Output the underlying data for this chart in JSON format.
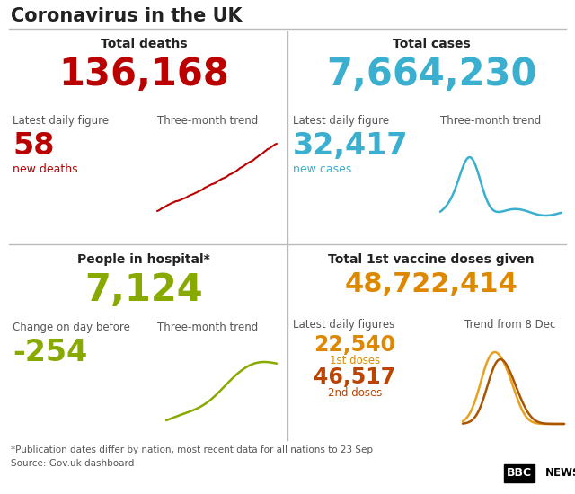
{
  "title": "Coronavirus in the UK",
  "bg_color": "#ffffff",
  "title_color": "#222222",
  "divider_color": "#bbbbbb",
  "top_left_header": "Total deaths",
  "total_deaths": "136,168",
  "deaths_color": "#bb0000",
  "latest_daily_label_tl": "Latest daily figure",
  "three_month_label_tl": "Three-month trend",
  "daily_deaths": "58",
  "new_deaths_label": "new deaths",
  "top_right_header": "Total cases",
  "total_cases": "7,664,230",
  "cases_color": "#3aafcf",
  "latest_daily_label_tr": "Latest daily figure",
  "three_month_label_tr": "Three-month trend",
  "daily_cases": "32,417",
  "new_cases_label": "new cases",
  "bottom_left_header": "People in hospital*",
  "hospital_count": "7,124",
  "hospital_color": "#88aa00",
  "change_label": "Change on day before",
  "three_month_label_bl": "Three-month trend",
  "hospital_change": "-254",
  "hospital_change_color": "#88aa00",
  "bottom_right_header": "Total 1st vaccine doses given",
  "vaccine_total": "48,722,414",
  "vaccine_color": "#dd8800",
  "latest_daily_figures_label": "Latest daily figures",
  "trend_label": "Trend from 8 Dec",
  "dose1_value": "22,540",
  "dose1_label": "1st doses",
  "dose1_color": "#dd8800",
  "dose2_value": "46,517",
  "dose2_label": "2nd doses",
  "dose2_color": "#bb4400",
  "footer1": "*Publication dates differ by nation, most recent data for all nations to 23 Sep",
  "footer2": "Source: Gov.uk dashboard",
  "footer_color": "#555555",
  "label_color": "#555555",
  "header_color": "#222222"
}
